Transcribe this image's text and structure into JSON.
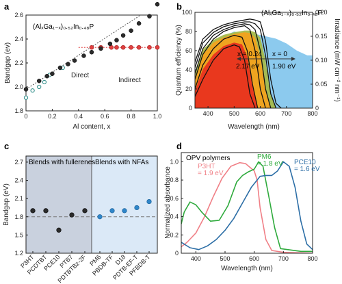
{
  "panels": {
    "a": {
      "label": "a",
      "inset_title": "(AlₓGa₁₋ₓ)₀.₅₂In₀.₄₈P",
      "direct_label": "Direct",
      "indirect_label": "Indirect"
    },
    "b": {
      "label": "b",
      "inset_title": "(AlₓGa₁₋ₓ)₀.₅₂In₀.₄₈P",
      "annotations": [
        "x = 0.24",
        "x = 0",
        "2.17 eV",
        "1.90 eV"
      ]
    },
    "c": {
      "label": "c",
      "group_labels": [
        "Blends with fullerenes",
        "Blends with NFAs"
      ]
    },
    "d": {
      "label": "d",
      "inset_title": "OPV polymers"
    }
  },
  "colors": {
    "black_dot": "#2b2b2b",
    "teal_open": "#2a8a86",
    "indirect_red": "#e04040",
    "fullerene_bg": "#c9d1de",
    "nfa_bg": "#dbe9f7",
    "nfa_dot": "#2f86c9",
    "p3ht": "#f07f86",
    "pm6": "#2eaa3c",
    "pce10": "#2c6ea6",
    "spectrum_blue": "#7fc4ec",
    "fill_red": "#e8331f",
    "fill_orange": "#f2a21e",
    "fill_olive": "#a7b94a"
  },
  "chart_data": [
    {
      "panel": "a",
      "type": "scatter",
      "title": "(AlₓGa₁₋ₓ)₀.₅₂In₀.₄₈P",
      "xlabel": "Al content, x",
      "ylabel": "Bandgap (ev)",
      "xlim": [
        0,
        1.0
      ],
      "ylim": [
        1.8,
        2.6
      ],
      "xticks": [
        "0",
        "0.2",
        "0.4",
        "0.6",
        "0.8",
        "1.0"
      ],
      "xtick_values": [
        0,
        0.2,
        0.4,
        0.6,
        0.8,
        1.0
      ],
      "yticks": [
        "1.8",
        "2.0",
        "2.2",
        "2.4",
        "2.6"
      ],
      "ytick_values": [
        1.8,
        2.0,
        2.2,
        2.4,
        2.6
      ],
      "series": [
        {
          "name": "Direct",
          "x": [
            0,
            0.1,
            0.16,
            0.2,
            0.26,
            0.32,
            0.37,
            0.44,
            0.5,
            0.57,
            0.64,
            0.69,
            0.74,
            0.8,
            0.86,
            0.94,
            1.0
          ],
          "y": [
            1.98,
            2.05,
            2.09,
            2.11,
            2.16,
            2.19,
            2.22,
            2.26,
            2.29,
            2.32,
            2.36,
            2.39,
            2.43,
            2.47,
            2.53,
            2.59,
            2.69
          ]
        },
        {
          "name": "Indirect",
          "x": [
            0.5,
            0.57,
            0.65,
            0.69,
            0.74,
            0.8,
            0.86,
            0.94,
            1.0
          ],
          "y": [
            2.33,
            2.33,
            2.33,
            2.33,
            2.33,
            2.33,
            2.33,
            2.33,
            2.33
          ]
        },
        {
          "name": "open points",
          "x": [
            0,
            0.05,
            0.1,
            0.14,
            0.18,
            0.28
          ],
          "y": [
            1.91,
            1.97,
            2.0,
            2.04,
            2.1,
            2.16
          ]
        }
      ],
      "grid": false
    },
    {
      "panel": "b",
      "type": "line",
      "title": "(AlₓGa₁₋ₓ)₀.₅₂In₀.₄₈P",
      "xlabel": "Wavelength (nm)",
      "ylabel": "Quantum efficiency (%)",
      "y2label": "Irradiance (mW cm⁻² nm⁻¹)",
      "xlim": [
        350,
        800
      ],
      "ylim": [
        0,
        100
      ],
      "y2lim": [
        0,
        0.2
      ],
      "xticks": [
        "400",
        "500",
        "600",
        "700",
        "800"
      ],
      "xtick_values": [
        400,
        500,
        600,
        700,
        800
      ],
      "yticks": [
        "0",
        "20",
        "40",
        "60",
        "80",
        "100"
      ],
      "ytick_values": [
        0,
        20,
        40,
        60,
        80,
        100
      ],
      "y2ticks": [
        "0",
        "0.05",
        "0.10",
        "0.15",
        "0.20"
      ],
      "y2tick_values": [
        0,
        0.05,
        0.1,
        0.15,
        0.2
      ],
      "series": [
        {
          "name": "solar spectrum",
          "x": [
            350,
            380,
            420,
            460,
            500,
            540,
            580,
            620,
            660,
            700,
            740,
            780,
            800
          ],
          "y2": [
            0.06,
            0.09,
            0.12,
            0.15,
            0.16,
            0.155,
            0.155,
            0.15,
            0.145,
            0.135,
            0.12,
            0.11,
            0.11
          ]
        },
        {
          "name": "QE 1",
          "x": [
            350,
            380,
            420,
            460,
            500,
            540,
            560,
            580,
            600,
            620,
            640,
            660,
            680
          ],
          "y": [
            48,
            72,
            82,
            87,
            90,
            92,
            93,
            92,
            90,
            70,
            30,
            5,
            0
          ]
        },
        {
          "name": "QE 2",
          "x": [
            350,
            380,
            420,
            460,
            500,
            540,
            560,
            580,
            600,
            620,
            640,
            660
          ],
          "y": [
            42,
            68,
            79,
            85,
            88,
            90,
            90,
            88,
            82,
            55,
            15,
            0
          ]
        },
        {
          "name": "QE 3",
          "x": [
            350,
            380,
            420,
            460,
            500,
            540,
            560,
            580,
            600,
            620,
            640
          ],
          "y": [
            36,
            62,
            76,
            82,
            86,
            88,
            87,
            82,
            60,
            20,
            0
          ]
        },
        {
          "name": "QE 4",
          "x": [
            350,
            380,
            420,
            460,
            500,
            540,
            560,
            580,
            600,
            620
          ],
          "y": [
            30,
            56,
            72,
            80,
            84,
            86,
            82,
            60,
            20,
            0
          ]
        },
        {
          "name": "QE 5",
          "x": [
            350,
            380,
            420,
            460,
            500,
            530,
            550,
            570,
            590
          ],
          "y": [
            20,
            45,
            62,
            72,
            76,
            74,
            60,
            25,
            0
          ]
        },
        {
          "name": "QE 6",
          "x": [
            350,
            380,
            420,
            460,
            500,
            520,
            540,
            560,
            580
          ],
          "y": [
            12,
            30,
            50,
            62,
            66,
            64,
            50,
            15,
            0
          ]
        }
      ],
      "grid": false
    },
    {
      "panel": "c",
      "type": "scatter",
      "ylabel": "Bandgap (eV)",
      "ylim": [
        1.2,
        2.8
      ],
      "yticks": [
        "1.2",
        "1.5",
        "1.8",
        "2.1",
        "2.4",
        "2.7"
      ],
      "ytick_values": [
        1.2,
        1.5,
        1.8,
        2.1,
        2.4,
        2.7
      ],
      "categories": [
        "P3HT",
        "PCDTBT",
        "PCE10",
        "PTB7",
        "PDTBTBz-2F",
        "PM6",
        "PBDB-TF",
        "D18",
        "PDTB-EF-T",
        "PFBDB-T"
      ],
      "values": [
        1.9,
        1.9,
        1.58,
        1.83,
        1.9,
        1.8,
        1.9,
        1.9,
        1.95,
        2.05
      ],
      "groups": [
        "Blends with fullerenes",
        "Blends with fullerenes",
        "Blends with fullerenes",
        "Blends with fullerenes",
        "Blends with fullerenes",
        "Blends with NFAs",
        "Blends with NFAs",
        "Blends with NFAs",
        "Blends with NFAs",
        "Blends with NFAs"
      ],
      "reference_line": 1.8,
      "grid": false
    },
    {
      "panel": "d",
      "type": "line",
      "title": "OPV polymers",
      "xlabel": "Wavelength (nm)",
      "ylabel": "Normalized absorbance",
      "xlim": [
        350,
        800
      ],
      "ylim": [
        0,
        1.1
      ],
      "xticks": [
        "400",
        "500",
        "600",
        "700",
        "800"
      ],
      "xtick_values": [
        400,
        500,
        600,
        700,
        800
      ],
      "yticks": [
        "0",
        "0.2",
        "0.4",
        "0.6",
        "0.8",
        "1.0"
      ],
      "ytick_values": [
        0,
        0.2,
        0.4,
        0.6,
        0.8,
        1.0
      ],
      "series": [
        {
          "name": "P3HT",
          "label": "P3HT",
          "sublabel": "= 1.9 eV",
          "x": [
            350,
            370,
            400,
            430,
            460,
            490,
            520,
            550,
            570,
            600,
            610,
            620,
            640,
            660,
            700,
            800
          ],
          "y": [
            0.07,
            0.12,
            0.22,
            0.4,
            0.62,
            0.82,
            0.95,
            0.99,
            0.98,
            0.9,
            0.8,
            0.5,
            0.15,
            0.03,
            0.01,
            0.0
          ]
        },
        {
          "name": "PM6",
          "label": "PM6",
          "sublabel": "= 1.8 eV",
          "x": [
            350,
            360,
            380,
            400,
            420,
            450,
            480,
            510,
            540,
            560,
            580,
            600,
            615,
            630,
            650,
            670,
            690,
            760,
            800
          ],
          "y": [
            0.32,
            0.45,
            0.56,
            0.53,
            0.45,
            0.35,
            0.36,
            0.52,
            0.78,
            0.85,
            0.89,
            0.92,
            1.0,
            0.95,
            0.62,
            0.28,
            0.05,
            0.02,
            0.02
          ]
        },
        {
          "name": "PCE10",
          "label": "PCE10",
          "sublabel": "= 1.6 eV",
          "x": [
            350,
            380,
            410,
            440,
            470,
            500,
            530,
            560,
            590,
            620,
            640,
            660,
            680,
            700,
            720,
            740,
            760,
            780,
            800
          ],
          "y": [
            0.12,
            0.06,
            0.04,
            0.08,
            0.15,
            0.25,
            0.38,
            0.55,
            0.72,
            0.84,
            0.85,
            0.85,
            0.9,
            1.0,
            0.95,
            0.72,
            0.35,
            0.1,
            0.04
          ]
        }
      ],
      "grid": false
    }
  ]
}
